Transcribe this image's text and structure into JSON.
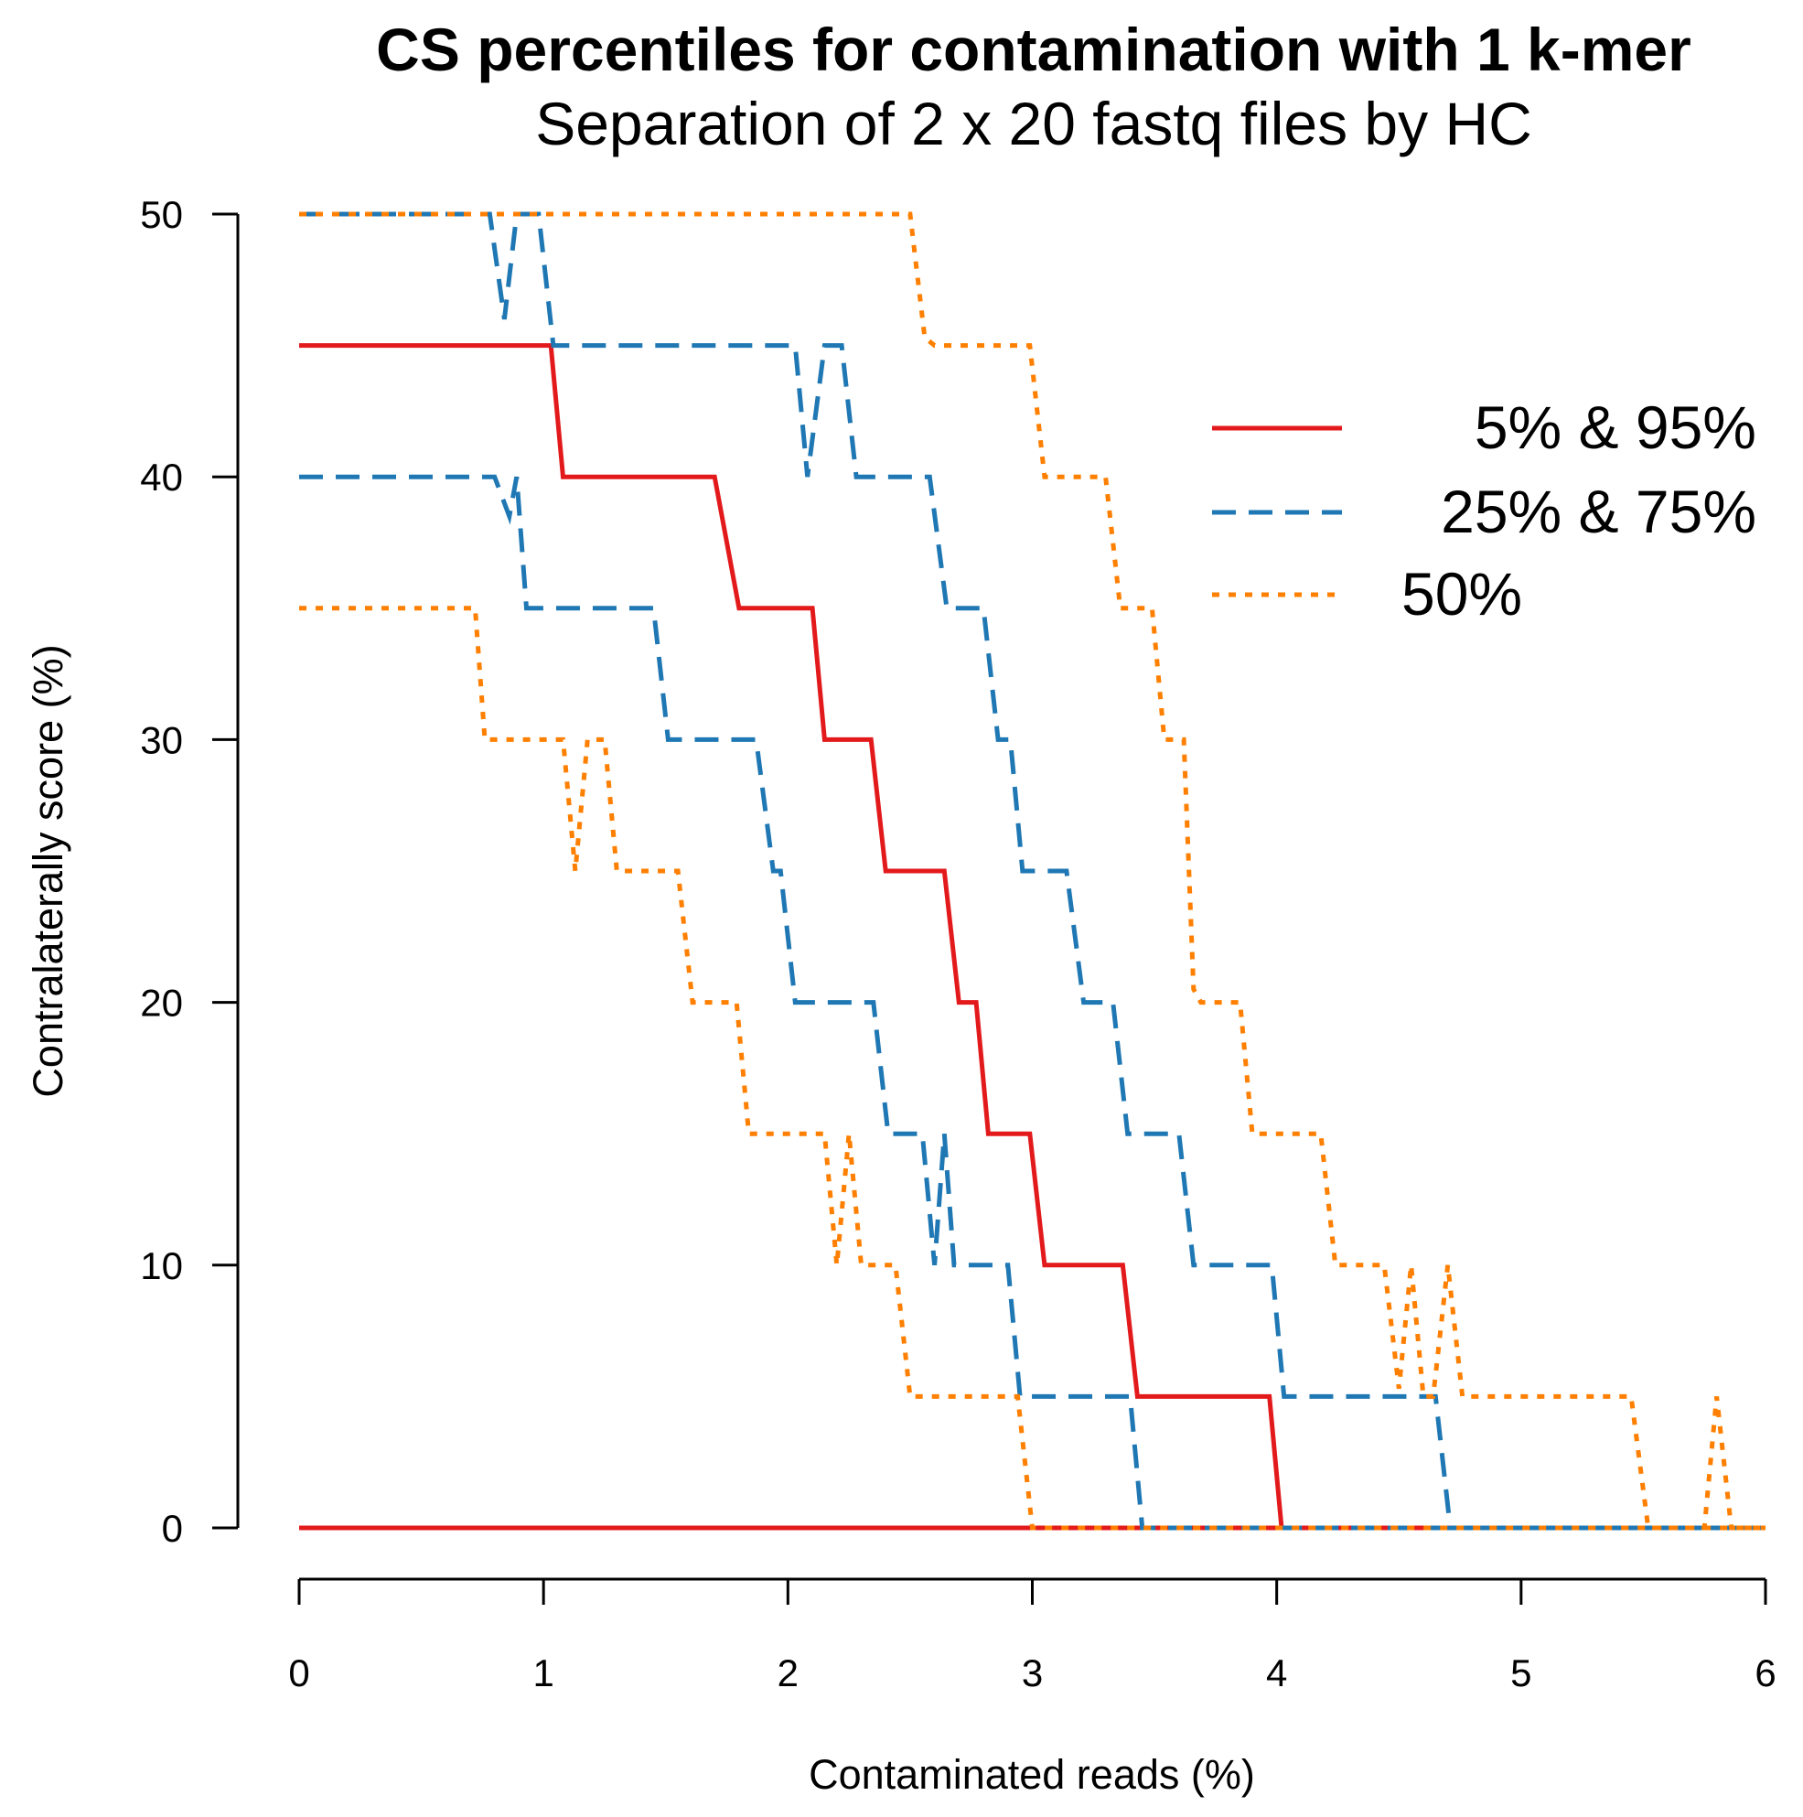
{
  "chart_data": {
    "type": "line",
    "title": "CS percentiles for contamination with 1 k-mer",
    "subtitle": "Separation of 2 x 20 fastq files by HC",
    "xlabel": "Contaminated reads (%)",
    "ylabel": "Contralaterally score (%)",
    "xlim": [
      0,
      6
    ],
    "ylim": [
      0,
      50
    ],
    "x_ticks": [
      "0",
      "1",
      "2",
      "3",
      "4",
      "5",
      "6"
    ],
    "y_ticks": [
      "0",
      "10",
      "20",
      "30",
      "40",
      "50"
    ],
    "legend_position": "top-right",
    "legend": [
      {
        "label": "5% & 95%",
        "color": "#e31a1c",
        "style": "solid"
      },
      {
        "label": "25% & 75%",
        "color": "#1f78b4",
        "style": "dashed"
      },
      {
        "label": "50%",
        "color": "#ff7f00",
        "style": "dotted"
      }
    ],
    "series": [
      {
        "name": "5% percentile",
        "group": "5% & 95%",
        "color": "#e31a1c",
        "style": "solid",
        "points": [
          [
            0,
            0
          ],
          [
            6,
            0
          ]
        ]
      },
      {
        "name": "95% percentile",
        "group": "5% & 95%",
        "color": "#e31a1c",
        "style": "solid",
        "points": [
          [
            0,
            45
          ],
          [
            1.03,
            45
          ],
          [
            1.08,
            40
          ],
          [
            1.7,
            40
          ],
          [
            1.8,
            35
          ],
          [
            2.1,
            35
          ],
          [
            2.15,
            30
          ],
          [
            2.34,
            30
          ],
          [
            2.4,
            25
          ],
          [
            2.64,
            25
          ],
          [
            2.7,
            20
          ],
          [
            2.77,
            20
          ],
          [
            2.82,
            15
          ],
          [
            2.99,
            15
          ],
          [
            3.05,
            10
          ],
          [
            3.37,
            10
          ],
          [
            3.43,
            5
          ],
          [
            3.97,
            5
          ],
          [
            4.02,
            0
          ],
          [
            6,
            0
          ]
        ]
      },
      {
        "name": "25% percentile",
        "group": "25% & 75%",
        "color": "#1f78b4",
        "style": "dashed",
        "points": [
          [
            0,
            40
          ],
          [
            0.8,
            40
          ],
          [
            0.86,
            38.5
          ],
          [
            0.89,
            40
          ],
          [
            0.93,
            35
          ],
          [
            1.45,
            35
          ],
          [
            1.51,
            30
          ],
          [
            1.87,
            30
          ],
          [
            1.94,
            25
          ],
          [
            1.97,
            25
          ],
          [
            2.03,
            20
          ],
          [
            2.35,
            20
          ],
          [
            2.41,
            15
          ],
          [
            2.55,
            15
          ],
          [
            2.6,
            10
          ],
          [
            2.64,
            15
          ],
          [
            2.68,
            10
          ],
          [
            2.9,
            10
          ],
          [
            2.95,
            5
          ],
          [
            3.4,
            5
          ],
          [
            3.45,
            0
          ],
          [
            6,
            0
          ]
        ]
      },
      {
        "name": "75% percentile",
        "group": "25% & 75%",
        "color": "#1f78b4",
        "style": "dashed",
        "points": [
          [
            0,
            50
          ],
          [
            0.78,
            50
          ],
          [
            0.84,
            46
          ],
          [
            0.89,
            50
          ],
          [
            0.98,
            50
          ],
          [
            1.04,
            45
          ],
          [
            2.03,
            45
          ],
          [
            2.08,
            40
          ],
          [
            2.15,
            45
          ],
          [
            2.22,
            45
          ],
          [
            2.28,
            40
          ],
          [
            2.58,
            40
          ],
          [
            2.65,
            35
          ],
          [
            2.8,
            35
          ],
          [
            2.86,
            30
          ],
          [
            2.91,
            30
          ],
          [
            2.96,
            25
          ],
          [
            3.14,
            25
          ],
          [
            3.21,
            20
          ],
          [
            3.33,
            20
          ],
          [
            3.39,
            15
          ],
          [
            3.6,
            15
          ],
          [
            3.66,
            10
          ],
          [
            3.98,
            10
          ],
          [
            4.03,
            5
          ],
          [
            4.65,
            5
          ],
          [
            4.71,
            0
          ],
          [
            6,
            0
          ]
        ]
      },
      {
        "name": "50% percentile (lower)",
        "group": "50%",
        "color": "#ff7f00",
        "style": "dotted",
        "points": [
          [
            0,
            35
          ],
          [
            0.72,
            35
          ],
          [
            0.76,
            30
          ],
          [
            1.08,
            30
          ],
          [
            1.13,
            25
          ],
          [
            1.18,
            30
          ],
          [
            1.25,
            30
          ],
          [
            1.3,
            25
          ],
          [
            1.55,
            25
          ],
          [
            1.61,
            20
          ],
          [
            1.79,
            20
          ],
          [
            1.84,
            15
          ],
          [
            2.15,
            15
          ],
          [
            2.2,
            10
          ],
          [
            2.25,
            15
          ],
          [
            2.3,
            10
          ],
          [
            2.44,
            10
          ],
          [
            2.5,
            5
          ],
          [
            2.94,
            5
          ],
          [
            3.0,
            0
          ],
          [
            6,
            0
          ]
        ]
      },
      {
        "name": "50% percentile (upper)",
        "group": "50%",
        "color": "#ff7f00",
        "style": "dotted",
        "points": [
          [
            0,
            50
          ],
          [
            2.5,
            50
          ],
          [
            2.56,
            45.3
          ],
          [
            2.6,
            45
          ],
          [
            2.99,
            45
          ],
          [
            3.05,
            40
          ],
          [
            3.3,
            40
          ],
          [
            3.36,
            35
          ],
          [
            3.49,
            35
          ],
          [
            3.54,
            30
          ],
          [
            3.62,
            30
          ],
          [
            3.66,
            20.5
          ],
          [
            3.69,
            20
          ],
          [
            3.85,
            20
          ],
          [
            3.9,
            15
          ],
          [
            4.18,
            15
          ],
          [
            4.24,
            10
          ],
          [
            4.44,
            10
          ],
          [
            4.5,
            5.3
          ],
          [
            4.55,
            10
          ],
          [
            4.6,
            5
          ],
          [
            4.64,
            5
          ],
          [
            4.7,
            10
          ],
          [
            4.76,
            5
          ],
          [
            5.45,
            5
          ],
          [
            5.52,
            0
          ],
          [
            5.75,
            0
          ],
          [
            5.8,
            5
          ],
          [
            5.86,
            0
          ],
          [
            6,
            0
          ]
        ]
      }
    ]
  }
}
